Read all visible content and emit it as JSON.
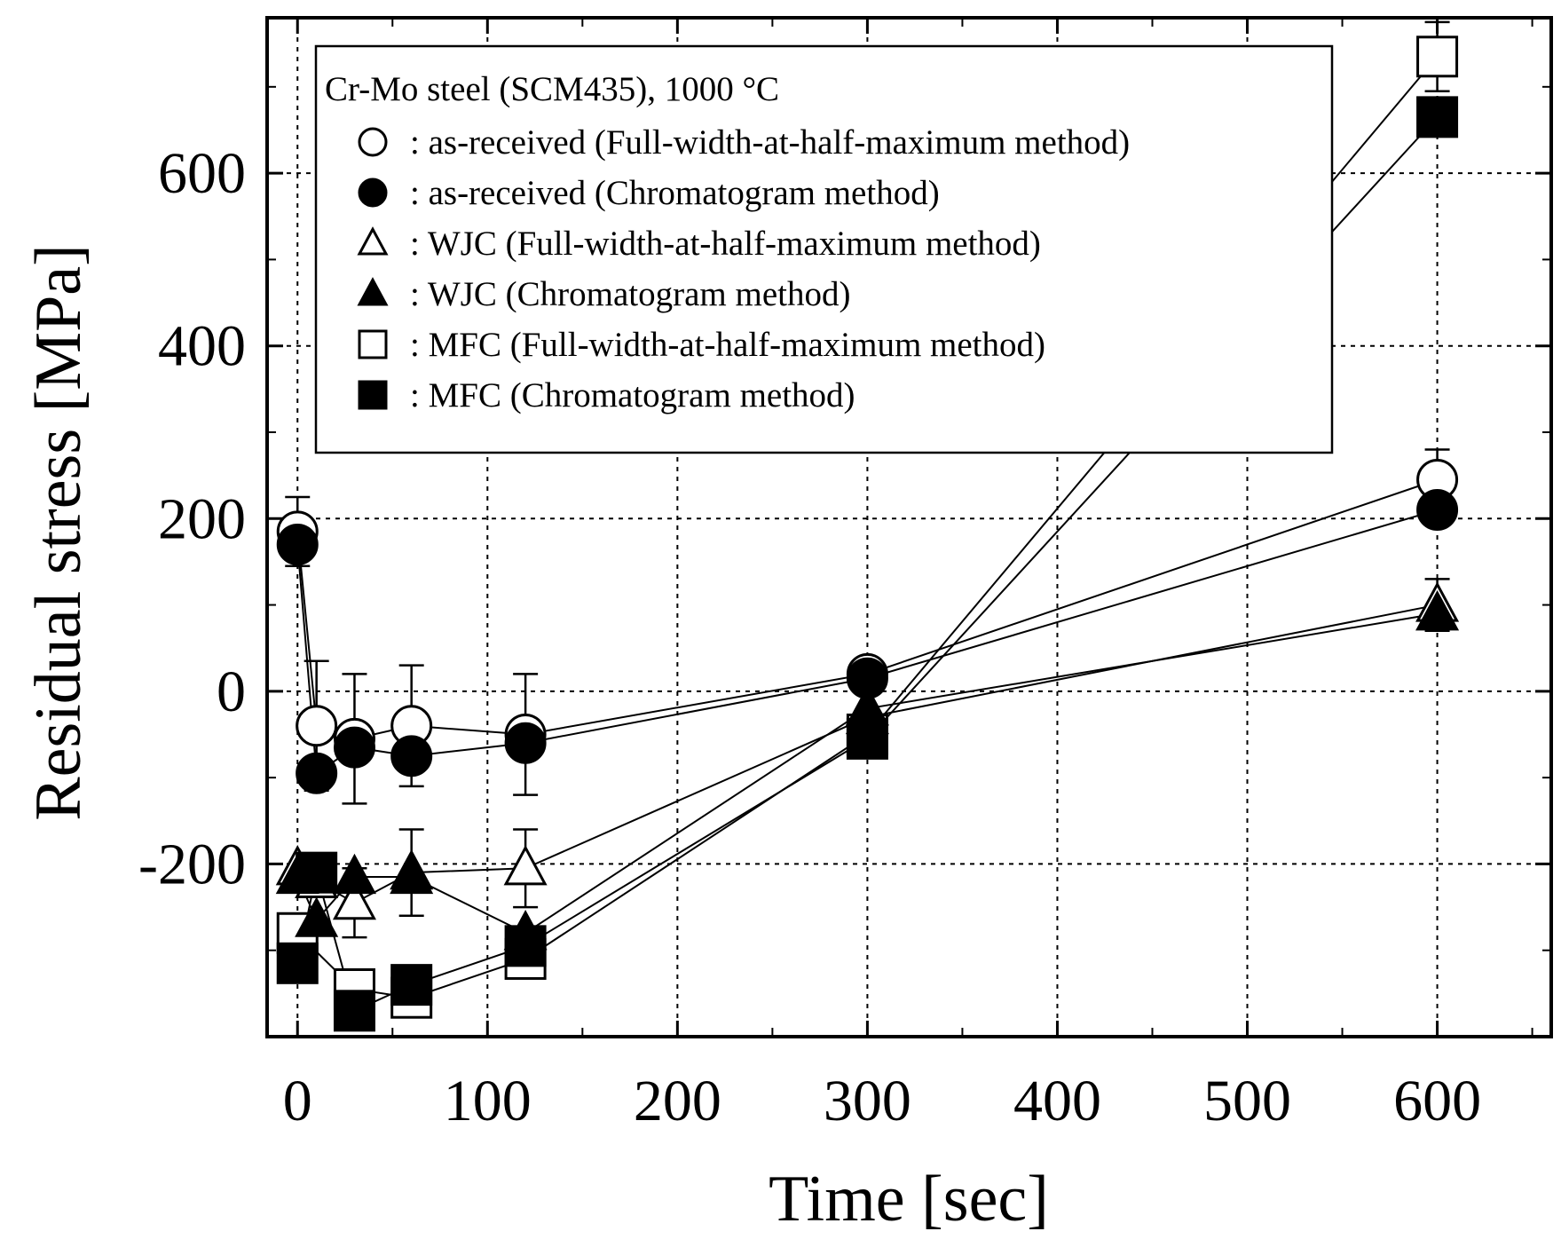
{
  "chart_data": {
    "type": "line",
    "title": "",
    "xlabel": "Time [sec]",
    "ylabel": "Residual stress [MPa]",
    "xlim": [
      -16,
      660
    ],
    "ylim": [
      -400,
      780
    ],
    "xticks": [
      0,
      100,
      200,
      300,
      400,
      500,
      600
    ],
    "yticks": [
      -200,
      0,
      200,
      400,
      600
    ],
    "xtick_labels": [
      "0",
      "100",
      "200",
      "300",
      "400",
      "500",
      "600"
    ],
    "ytick_labels": [
      "-200",
      "0",
      "200",
      "400",
      "600"
    ],
    "grid": true,
    "legend": {
      "title": "Cr-Mo steel (SCM435), 1000 °C",
      "position": "top-left",
      "entries": [
        ": as-received (Full-width-at-half-maximum method)",
        ": as-received (Chromatogram method)",
        ": WJC (Full-width-at-half-maximum method)",
        ": WJC (Chromatogram method)",
        ": MFC (Full-width-at-half-maximum method)",
        ": MFC (Chromatogram method)"
      ]
    },
    "series": [
      {
        "name": "as-received (Full-width-at-half-maximum method)",
        "marker": "circle",
        "filled": false,
        "x": [
          0,
          10,
          30,
          60,
          120,
          300,
          600
        ],
        "y": [
          185,
          -40,
          -55,
          -40,
          -50,
          20,
          245
        ],
        "err": [
          40,
          75,
          75,
          70,
          70,
          0,
          35
        ]
      },
      {
        "name": "as-received (Chromatogram method)",
        "marker": "circle",
        "filled": true,
        "x": [
          0,
          10,
          30,
          60,
          120,
          300,
          600
        ],
        "y": [
          170,
          -95,
          -65,
          -75,
          -60,
          15,
          210
        ],
        "err": [
          0,
          0,
          0,
          0,
          0,
          0,
          0
        ]
      },
      {
        "name": "WJC (Full-width-at-half-maximum method)",
        "marker": "triangle",
        "filled": false,
        "x": [
          0,
          10,
          30,
          60,
          120,
          300,
          600
        ],
        "y": [
          -205,
          -220,
          -245,
          -210,
          -205,
          -30,
          100
        ],
        "err": [
          0,
          0,
          40,
          50,
          45,
          0,
          30
        ]
      },
      {
        "name": "WJC (Chromatogram method)",
        "marker": "triangle",
        "filled": true,
        "x": [
          0,
          10,
          30,
          60,
          120,
          300,
          600
        ],
        "y": [
          -215,
          -265,
          -215,
          -215,
          -280,
          -20,
          90
        ],
        "err": [
          0,
          0,
          0,
          0,
          0,
          0,
          0
        ]
      },
      {
        "name": "MFC (Full-width-at-half-maximum method)",
        "marker": "square",
        "filled": false,
        "x": [
          0,
          30,
          60,
          120,
          300,
          600
        ],
        "y": [
          -280,
          -345,
          -355,
          -310,
          -50,
          735
        ],
        "err": [
          0,
          0,
          0,
          0,
          0,
          40
        ]
      },
      {
        "name": "MFC (Chromatogram method)",
        "marker": "square",
        "filled": true,
        "x": [
          0,
          10,
          30,
          60,
          120,
          300,
          600
        ],
        "y": [
          -315,
          -210,
          -370,
          -340,
          -295,
          -55,
          665
        ],
        "err": [
          0,
          0,
          0,
          0,
          0,
          0,
          0
        ]
      }
    ]
  }
}
